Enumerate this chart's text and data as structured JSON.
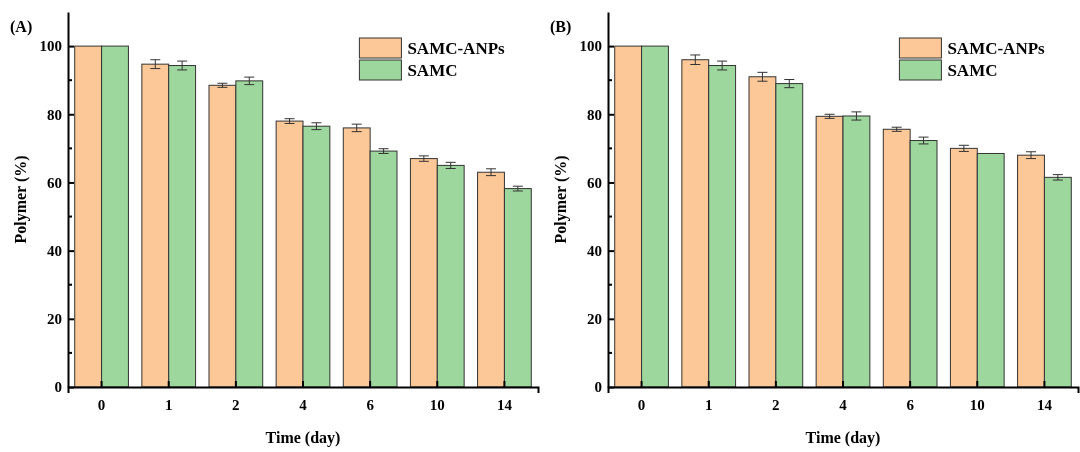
{
  "chart_data": [
    {
      "type": "bar",
      "title": "(A)",
      "xlabel": "Time (day)",
      "ylabel": "Polymer (%)",
      "categories": [
        "0",
        "1",
        "2",
        "4",
        "6",
        "10",
        "14"
      ],
      "series": [
        {
          "name": "SAMC-ANPs",
          "color": "#fdc898",
          "values": [
            100,
            94.7,
            88.5,
            78,
            76,
            67,
            63
          ],
          "errors": [
            null,
            1.3,
            0.6,
            0.7,
            1.1,
            0.8,
            1
          ]
        },
        {
          "name": "SAMC",
          "color": "#9dd79d",
          "values": [
            100,
            94.3,
            89.8,
            76.5,
            69.2,
            65,
            58.2
          ],
          "errors": [
            null,
            1.3,
            1.1,
            1,
            0.7,
            0.9,
            0.7
          ]
        }
      ],
      "ylim": [
        0,
        110
      ],
      "yticks": [
        0,
        20,
        40,
        60,
        80,
        100
      ],
      "legend": "top right",
      "grid": false
    },
    {
      "type": "bar",
      "title": "(B)",
      "xlabel": "Time (day)",
      "ylabel": "Polymer (%)",
      "categories": [
        "0",
        "1",
        "2",
        "4",
        "6",
        "10",
        "14"
      ],
      "series": [
        {
          "name": "SAMC-ANPs",
          "color": "#fdc898",
          "values": [
            100,
            96,
            91,
            79.4,
            75.6,
            70,
            68
          ],
          "errors": [
            null,
            1.4,
            1.3,
            0.6,
            0.6,
            0.9,
            1
          ]
        },
        {
          "name": "SAMC",
          "color": "#9dd79d",
          "values": [
            100,
            94.3,
            89,
            79.5,
            72.3,
            68.5,
            61.5
          ],
          "errors": [
            null,
            1.3,
            1.2,
            1.2,
            1,
            null,
            0.8
          ]
        }
      ],
      "ylim": [
        0,
        110
      ],
      "yticks": [
        0,
        20,
        40,
        60,
        80,
        100
      ],
      "legend": "top right",
      "grid": false
    }
  ]
}
